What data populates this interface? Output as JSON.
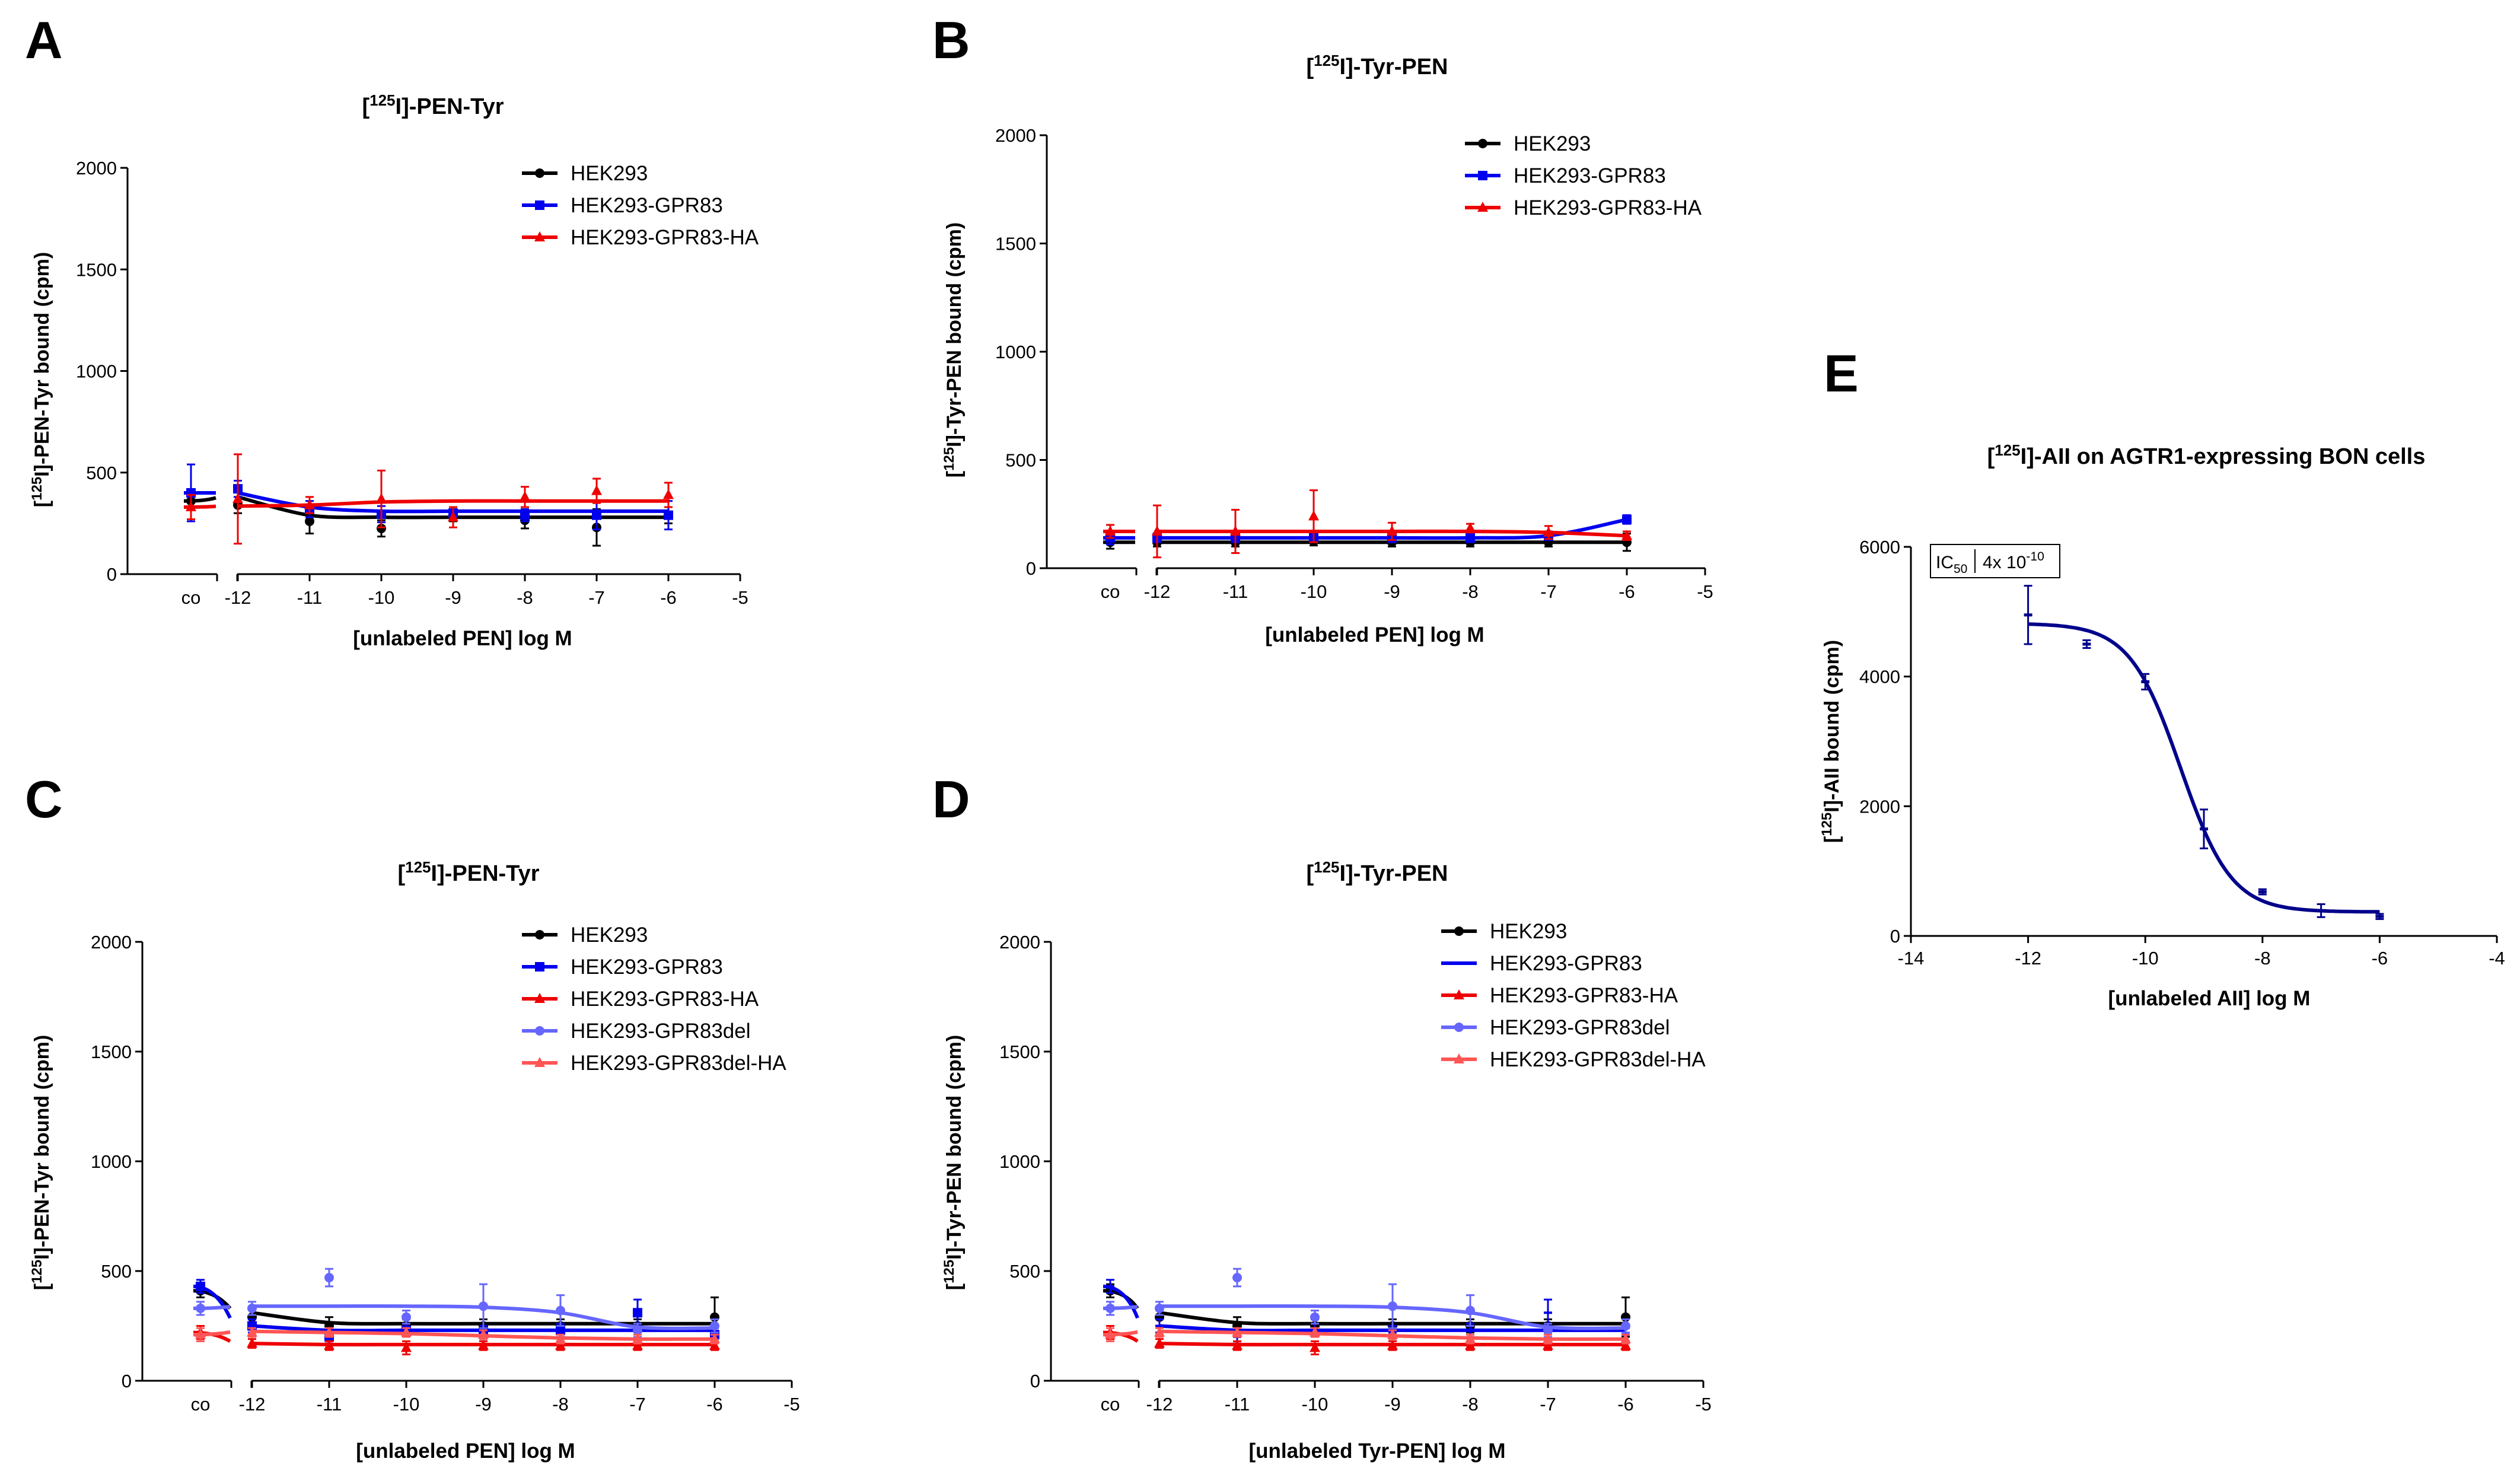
{
  "chart_data": [
    {
      "type": "line",
      "panel_label": "A",
      "title_prefix": "[",
      "title_sup": "125",
      "title_suffix": "I]-PEN-Tyr",
      "ylabel_prefix": "[",
      "ylabel_sup": "125",
      "ylabel_suffix": "I]-PEN-Tyr bound (cpm)",
      "xlabel": "[unlabeled PEN] log M",
      "ylim": [
        0,
        2000
      ],
      "yticks": [
        "0",
        "500",
        "1000",
        "1500",
        "2000"
      ],
      "xlim": [
        -12,
        -5
      ],
      "xticks": [
        "-12",
        "-11",
        "-10",
        "-9",
        "-8",
        "-7",
        "-6",
        "-5"
      ],
      "control_label": "co",
      "x": [
        -12,
        -11,
        -10,
        -9,
        -8,
        -7,
        -6
      ],
      "series": [
        {
          "name": "HEK293",
          "color": "#000000",
          "marker": "circle",
          "control": {
            "value": 360,
            "err": 40
          },
          "values": [
            340,
            260,
            225,
            290,
            265,
            230,
            290
          ],
          "errors": [
            40,
            60,
            40,
            30,
            40,
            90,
            40
          ],
          "fit": [
            380,
            290,
            280,
            280,
            280,
            280,
            280
          ]
        },
        {
          "name": "HEK293-GPR83",
          "color": "#0000ee",
          "marker": "square",
          "control": {
            "value": 400,
            "err": 140
          },
          "values": [
            420,
            320,
            295,
            300,
            290,
            290,
            290
          ],
          "errors": [
            40,
            40,
            40,
            30,
            30,
            70,
            70
          ],
          "fit": [
            400,
            330,
            310,
            310,
            310,
            310,
            310
          ]
        },
        {
          "name": "HEK293-GPR83-HA",
          "color": "#ee0000",
          "marker": "triangle",
          "control": {
            "value": 330,
            "err": 60
          },
          "values": [
            370,
            340,
            370,
            280,
            380,
            410,
            390
          ],
          "errors": [
            220,
            40,
            140,
            50,
            50,
            60,
            60
          ],
          "fit": [
            335,
            340,
            355,
            360,
            360,
            360,
            360
          ]
        }
      ],
      "legend_position": "top-right"
    },
    {
      "type": "line",
      "panel_label": "B",
      "title_prefix": "[",
      "title_sup": "125",
      "title_suffix": "I]-Tyr-PEN",
      "ylabel_prefix": "[",
      "ylabel_sup": "125",
      "ylabel_suffix": "I]-Tyr-PEN bound (cpm)",
      "xlabel": "[unlabeled PEN] log M",
      "ylim": [
        0,
        2000
      ],
      "yticks": [
        "0",
        "500",
        "1000",
        "1500",
        "2000"
      ],
      "xlim": [
        -12,
        -5
      ],
      "xticks": [
        "-12",
        "-11",
        "-10",
        "-9",
        "-8",
        "-7",
        "-6",
        "-5"
      ],
      "control_label": "co",
      "x": [
        -12,
        -11,
        -10,
        -9,
        -8,
        -7,
        -6
      ],
      "series": [
        {
          "name": "HEK293",
          "color": "#000000",
          "marker": "circle",
          "control": {
            "value": 120,
            "err": 30
          },
          "values": [
            120,
            120,
            125,
            120,
            120,
            120,
            120
          ],
          "errors": [
            20,
            20,
            20,
            20,
            20,
            20,
            40
          ],
          "fit": [
            120,
            120,
            120,
            120,
            120,
            120,
            120
          ]
        },
        {
          "name": "HEK293-GPR83",
          "color": "#0000ee",
          "marker": "square",
          "control": {
            "value": 140,
            "err": 30
          },
          "values": [
            140,
            140,
            140,
            140,
            140,
            150,
            225
          ],
          "errors": [
            20,
            20,
            20,
            20,
            20,
            20,
            20
          ],
          "fit": [
            140,
            140,
            140,
            140,
            140,
            150,
            225
          ]
        },
        {
          "name": "HEK293-GPR83-HA",
          "color": "#ee0000",
          "marker": "triangle",
          "control": {
            "value": 170,
            "err": 30
          },
          "values": [
            170,
            170,
            240,
            170,
            185,
            165,
            150
          ],
          "errors": [
            120,
            100,
            120,
            40,
            20,
            30,
            20
          ],
          "fit": [
            170,
            170,
            170,
            170,
            170,
            165,
            150
          ]
        }
      ],
      "legend_position": "top-right"
    },
    {
      "type": "line",
      "panel_label": "C",
      "title_prefix": "[",
      "title_sup": "125",
      "title_suffix": "I]-PEN-Tyr",
      "ylabel_prefix": "[",
      "ylabel_sup": "125",
      "ylabel_suffix": "I]-PEN-Tyr bound (cpm)",
      "xlabel": "[unlabeled PEN] log M",
      "ylim": [
        0,
        2000
      ],
      "yticks": [
        "0",
        "500",
        "1000",
        "1500",
        "2000"
      ],
      "xlim": [
        -12,
        -5
      ],
      "xticks": [
        "-12",
        "-11",
        "-10",
        "-9",
        "-8",
        "-7",
        "-6",
        "-5"
      ],
      "control_label": "co",
      "x": [
        -12,
        -11,
        -10,
        -9,
        -8,
        -7,
        -6
      ],
      "series": [
        {
          "name": "HEK293",
          "color": "#000000",
          "marker": "circle",
          "control": {
            "value": 410,
            "err": 30
          },
          "values": [
            290,
            250,
            250,
            250,
            250,
            250,
            290
          ],
          "errors": [
            40,
            40,
            30,
            30,
            30,
            30,
            90
          ],
          "fit": [
            310,
            265,
            260,
            260,
            260,
            260,
            260
          ]
        },
        {
          "name": "HEK293-GPR83",
          "color": "#0000ee",
          "marker": "square",
          "control": {
            "value": 430,
            "err": 30
          },
          "values": [
            250,
            200,
            230,
            220,
            230,
            310,
            210
          ],
          "errors": [
            30,
            30,
            30,
            30,
            30,
            60,
            30
          ],
          "fit": [
            250,
            230,
            230,
            230,
            230,
            230,
            230
          ]
        },
        {
          "name": "HEK293-GPR83-HA",
          "color": "#ee0000",
          "marker": "triangle",
          "control": {
            "value": 220,
            "err": 30
          },
          "values": [
            170,
            160,
            150,
            160,
            160,
            160,
            160
          ],
          "errors": [
            20,
            20,
            30,
            20,
            20,
            20,
            20
          ],
          "fit": [
            170,
            165,
            165,
            165,
            165,
            165,
            165
          ]
        },
        {
          "name": "HEK293-GPR83del",
          "color": "#6666ff",
          "marker": "circle",
          "control": {
            "value": 330,
            "err": 30
          },
          "values": [
            330,
            470,
            290,
            340,
            320,
            230,
            250
          ],
          "errors": [
            30,
            40,
            30,
            100,
            70,
            30,
            30
          ],
          "fit": [
            340,
            340,
            340,
            335,
            310,
            245,
            240
          ]
        },
        {
          "name": "HEK293-GPR83del-HA",
          "color": "#ff5555",
          "marker": "triangle",
          "control": {
            "value": 210,
            "err": 30
          },
          "values": [
            220,
            220,
            220,
            210,
            190,
            190,
            190
          ],
          "errors": [
            20,
            20,
            20,
            20,
            20,
            20,
            20
          ],
          "fit": [
            225,
            220,
            215,
            205,
            195,
            190,
            190
          ]
        }
      ],
      "legend_position": "top-right"
    },
    {
      "type": "line",
      "panel_label": "D",
      "title_prefix": "[",
      "title_sup": "125",
      "title_suffix": "I]-Tyr-PEN",
      "ylabel_prefix": "[",
      "ylabel_sup": "125",
      "ylabel_suffix": "I]-Tyr-PEN bound (cpm)",
      "xlabel": "[unlabeled Tyr-PEN] log M",
      "ylim": [
        0,
        2000
      ],
      "yticks": [
        "0",
        "500",
        "1000",
        "1500",
        "2000"
      ],
      "xlim": [
        -12,
        -5
      ],
      "xticks": [
        "-12",
        "-11",
        "-10",
        "-9",
        "-8",
        "-7",
        "-6",
        "-5"
      ],
      "control_label": "co",
      "x": [
        -12,
        -11,
        -10,
        -9,
        -8,
        -7,
        -6
      ],
      "series": [
        {
          "name": "HEK293",
          "color": "#000000",
          "marker": "circle",
          "control": {
            "value": 410,
            "err": 30
          },
          "values": [
            290,
            250,
            250,
            250,
            250,
            250,
            290
          ],
          "errors": [
            40,
            40,
            30,
            30,
            30,
            30,
            90
          ],
          "fit": [
            310,
            265,
            260,
            260,
            260,
            260,
            260
          ]
        },
        {
          "name": "HEK293-GPR83",
          "color": "#0000ee",
          "marker": "none",
          "control": {
            "value": 430,
            "err": 30
          },
          "values": [
            250,
            200,
            230,
            220,
            230,
            310,
            210
          ],
          "errors": [
            30,
            30,
            30,
            30,
            30,
            60,
            30
          ],
          "fit": [
            250,
            230,
            230,
            230,
            230,
            230,
            230
          ]
        },
        {
          "name": "HEK293-GPR83-HA",
          "color": "#ee0000",
          "marker": "triangle",
          "control": {
            "value": 220,
            "err": 30
          },
          "values": [
            170,
            160,
            150,
            160,
            160,
            160,
            160
          ],
          "errors": [
            20,
            20,
            30,
            20,
            20,
            20,
            20
          ],
          "fit": [
            170,
            165,
            165,
            165,
            165,
            165,
            165
          ]
        },
        {
          "name": "HEK293-GPR83del",
          "color": "#6666ff",
          "marker": "circle",
          "control": {
            "value": 330,
            "err": 30
          },
          "values": [
            330,
            470,
            290,
            340,
            320,
            230,
            250
          ],
          "errors": [
            30,
            40,
            30,
            100,
            70,
            30,
            30
          ],
          "fit": [
            340,
            340,
            340,
            335,
            310,
            245,
            240
          ]
        },
        {
          "name": "HEK293-GPR83del-HA",
          "color": "#ff5555",
          "marker": "triangle",
          "control": {
            "value": 210,
            "err": 30
          },
          "values": [
            220,
            220,
            220,
            210,
            190,
            190,
            190
          ],
          "errors": [
            20,
            20,
            20,
            20,
            20,
            20,
            20
          ],
          "fit": [
            225,
            220,
            215,
            205,
            195,
            190,
            190
          ]
        }
      ],
      "legend_position": "top-right"
    },
    {
      "type": "line",
      "panel_label": "E",
      "title_prefix": "[",
      "title_sup": "125",
      "title_suffix": "I]-AII on AGTR1-expressing BON cells",
      "ylabel_prefix": "[",
      "ylabel_sup": "125",
      "ylabel_suffix": "I]-AII bound (cpm)",
      "xlabel": "[unlabeled AII] log M",
      "ylim": [
        0,
        6000
      ],
      "yticks": [
        "0",
        "2000",
        "4000",
        "6000"
      ],
      "xlim": [
        -14,
        -4
      ],
      "xticks": [
        "-14",
        "-12",
        "-10",
        "-8",
        "-6",
        "-4"
      ],
      "annotation": {
        "label": "IC",
        "sub": "50",
        "value": "4x 10",
        "exp": "-10"
      },
      "x": [
        -12,
        -11,
        -10,
        -9,
        -8,
        -7,
        -6
      ],
      "series": [
        {
          "name": "[125I]-AII",
          "color": "#00008b",
          "marker": "dash",
          "values": [
            4950,
            4500,
            3920,
            1650,
            680,
            390,
            300
          ],
          "errors": [
            450,
            60,
            120,
            300,
            40,
            100,
            40
          ],
          "ic50_log": -9.4,
          "top": 4820,
          "bottom": 370,
          "hill": 1.0
        }
      ],
      "legend_position": "none"
    }
  ]
}
